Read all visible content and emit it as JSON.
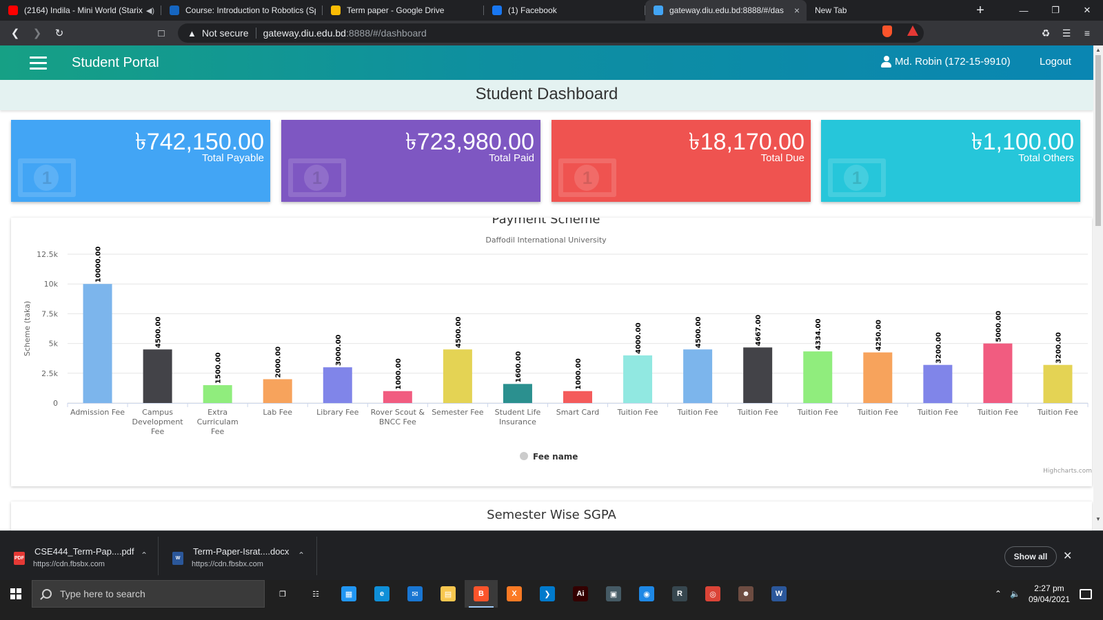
{
  "browser": {
    "tabs": [
      {
        "title": "(2164) Indila - Mini World (Starix",
        "favicon": "youtube-icon",
        "color": "#ff0000",
        "audio": true
      },
      {
        "title": "Course: Introduction to Robotics (Sp",
        "favicon": "moodle-icon",
        "color": "#1565c0"
      },
      {
        "title": "Term paper - Google Drive",
        "favicon": "google-drive-icon",
        "color": "#fbbc04"
      },
      {
        "title": "(1) Facebook",
        "favicon": "facebook-icon",
        "color": "#1877f2"
      },
      {
        "title": "gateway.diu.edu.bd:8888/#/das",
        "favicon": "diu-icon",
        "color": "#42a5f5",
        "active": true
      },
      {
        "title": "New Tab",
        "favicon": "",
        "color": "#202124"
      }
    ],
    "security": "Not secure",
    "url_host": "gateway.diu.edu.bd",
    "url_path": ":8888/#/dashboard"
  },
  "header": {
    "brand": "Student Portal",
    "user": "Md. Robin (172-15-9910)",
    "logout": "Logout"
  },
  "page_title": "Student Dashboard",
  "cards": [
    {
      "amount": "৳742,150.00",
      "label": "Total Payable",
      "color": "#42a5f5"
    },
    {
      "amount": "৳723,980.00",
      "label": "Total Paid",
      "color": "#7e57c2"
    },
    {
      "amount": "৳18,170.00",
      "label": "Total Due",
      "color": "#ef5350"
    },
    {
      "amount": "৳1,100.00",
      "label": "Total Others",
      "color": "#26c6da"
    }
  ],
  "chart_data": {
    "type": "bar",
    "title": "Payment Scheme",
    "subtitle": "Daffodil International University",
    "ylabel": "Scheme (taka)",
    "xlabel": "",
    "ylim": [
      0,
      12500
    ],
    "yticks": [
      0,
      2500,
      5000,
      7500,
      10000,
      12500
    ],
    "ytick_labels": [
      "0",
      "2.5k",
      "5k",
      "7.5k",
      "10k",
      "12.5k"
    ],
    "categories": [
      "Admission Fee",
      "Campus Development Fee",
      "Extra Curriculam Fee",
      "Lab Fee",
      "Library Fee",
      "Rover Scout & BNCC Fee",
      "Semester Fee",
      "Student Life Insurance",
      "Smart Card",
      "Tuition Fee",
      "Tuition Fee",
      "Tuition Fee",
      "Tuition Fee",
      "Tuition Fee",
      "Tuition Fee",
      "Tuition Fee",
      "Tuition Fee"
    ],
    "category_lines": [
      [
        "Admission Fee"
      ],
      [
        "Campus",
        "Development",
        "Fee"
      ],
      [
        "Extra",
        "Curriculam",
        "Fee"
      ],
      [
        "Lab Fee"
      ],
      [
        "Library Fee"
      ],
      [
        "Rover Scout &",
        "BNCC Fee"
      ],
      [
        "Semester Fee"
      ],
      [
        "Student Life",
        "Insurance"
      ],
      [
        "Smart Card"
      ],
      [
        "Tuition Fee"
      ],
      [
        "Tuition Fee"
      ],
      [
        "Tuition Fee"
      ],
      [
        "Tuition Fee"
      ],
      [
        "Tuition Fee"
      ],
      [
        "Tuition Fee"
      ],
      [
        "Tuition Fee"
      ],
      [
        "Tuition Fee"
      ]
    ],
    "values": [
      10000,
      4500,
      1500,
      2000,
      3000,
      1000,
      4500,
      1600,
      1000,
      4000,
      4500,
      4667,
      4334,
      4250,
      3200,
      5000,
      3200
    ],
    "data_labels": [
      "10000.00",
      "4500.00",
      "1500.00",
      "2000.00",
      "3000.00",
      "1000.00",
      "4500.00",
      "1600.00",
      "1000.00",
      "4000.00",
      "4500.00",
      "4667.00",
      "4334.00",
      "4250.00",
      "3200.00",
      "5000.00",
      "3200.00"
    ],
    "colors": [
      "#7cb5ec",
      "#434348",
      "#90ed7d",
      "#f7a35c",
      "#8085e9",
      "#f15c80",
      "#e4d354",
      "#2b908f",
      "#f45b5b",
      "#91e8e1",
      "#7cb5ec",
      "#434348",
      "#90ed7d",
      "#f7a35c",
      "#8085e9",
      "#f15c80",
      "#e4d354"
    ],
    "legend": "Fee name",
    "legend_position": "bottom-center",
    "credits": "Highcharts.com",
    "grid": true
  },
  "sgpa_title": "Semester Wise SGPA",
  "downloads": {
    "items": [
      {
        "name": "CSE444_Term-Pap....pdf",
        "source": "https://cdn.fbsbx.com",
        "type": "PDF",
        "color": "#e53935"
      },
      {
        "name": "Term-Paper-Israt....docx",
        "source": "https://cdn.fbsbx.com",
        "type": "W",
        "color": "#2b579a"
      }
    ],
    "show_all": "Show all"
  },
  "taskbar": {
    "search_placeholder": "Type here to search",
    "apps": [
      {
        "name": "task-view-icon",
        "color": "#202020",
        "glyph": "❐"
      },
      {
        "name": "widgets-icon",
        "color": "#202020",
        "glyph": "☷"
      },
      {
        "name": "computer-icon",
        "color": "#2196f3",
        "glyph": "▦"
      },
      {
        "name": "edge-icon",
        "color": "#0f8fd8",
        "glyph": "e"
      },
      {
        "name": "mail-icon",
        "color": "#1976d2",
        "glyph": "✉"
      },
      {
        "name": "file-explorer-icon",
        "color": "#f9c74f",
        "glyph": "▤"
      },
      {
        "name": "brave-icon",
        "color": "#fb542b",
        "glyph": "B",
        "active": true
      },
      {
        "name": "xampp-icon",
        "color": "#fb7a24",
        "glyph": "X"
      },
      {
        "name": "vscode-icon",
        "color": "#007acc",
        "glyph": "❯"
      },
      {
        "name": "illustrator-icon",
        "color": "#330000",
        "glyph": "Ai"
      },
      {
        "name": "store-icon",
        "color": "#455a64",
        "glyph": "▣"
      },
      {
        "name": "photos-icon",
        "color": "#1e88e5",
        "glyph": "◉"
      },
      {
        "name": "robotics-app-icon",
        "color": "#37474f",
        "glyph": "R"
      },
      {
        "name": "chrome-icon",
        "color": "#db4437",
        "glyph": "◎"
      },
      {
        "name": "game-icon",
        "color": "#6d4c41",
        "glyph": "☻"
      },
      {
        "name": "word-icon",
        "color": "#2b579a",
        "glyph": "W"
      }
    ],
    "time": "2:27 pm",
    "date": "09/04/2021"
  }
}
